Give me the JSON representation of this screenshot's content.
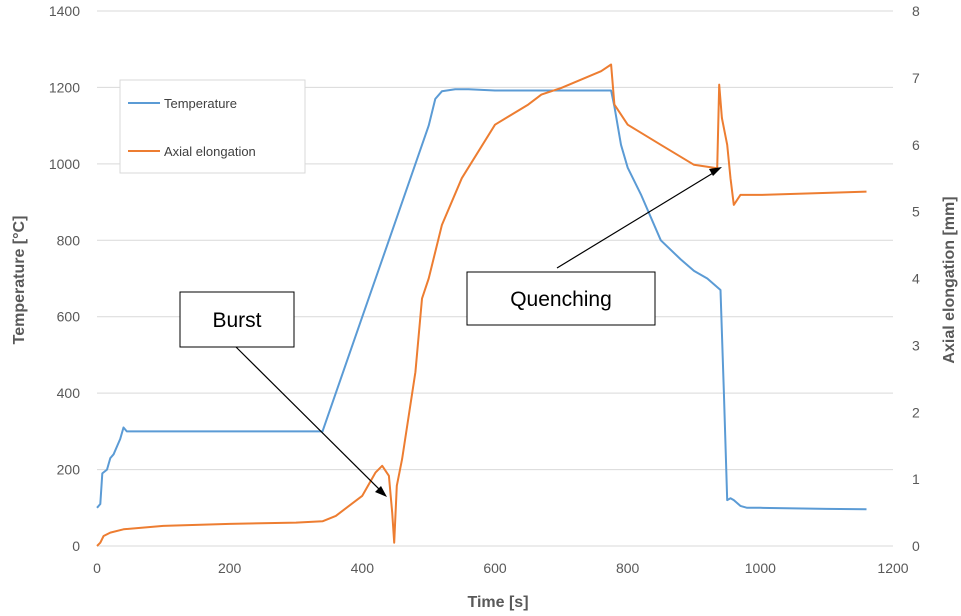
{
  "chart_data": {
    "type": "line",
    "xlabel": "Time [s]",
    "ylabel": "Temperature [°C]",
    "y2label": "Axial elongation [mm]",
    "xlim": [
      0,
      1200
    ],
    "ylim": [
      0,
      1400
    ],
    "y2lim": [
      0,
      8
    ],
    "xticks": [
      0,
      200,
      400,
      600,
      800,
      1000,
      1200
    ],
    "yticks": [
      0,
      200,
      400,
      600,
      800,
      1000,
      1200,
      1400
    ],
    "y2ticks": [
      0,
      1,
      2,
      3,
      4,
      5,
      6,
      7,
      8
    ],
    "grid": "horizontal",
    "legend_position": "top-left",
    "series": [
      {
        "name": "Temperature",
        "axis": "left",
        "color": "#5b9bd5",
        "x": [
          0,
          5,
          8,
          15,
          20,
          25,
          30,
          35,
          40,
          45,
          60,
          100,
          200,
          300,
          340,
          360,
          400,
          440,
          480,
          500,
          510,
          520,
          540,
          560,
          600,
          700,
          760,
          775,
          780,
          790,
          800,
          820,
          850,
          880,
          900,
          920,
          940,
          945,
          950,
          955,
          960,
          970,
          980,
          1000,
          1100,
          1160
        ],
        "y": [
          100,
          110,
          190,
          200,
          230,
          240,
          260,
          280,
          310,
          300,
          300,
          300,
          300,
          300,
          300,
          400,
          600,
          800,
          1000,
          1100,
          1170,
          1190,
          1195,
          1195,
          1192,
          1192,
          1192,
          1192,
          1150,
          1050,
          990,
          920,
          800,
          750,
          720,
          700,
          670,
          400,
          120,
          125,
          120,
          105,
          100,
          100,
          97,
          96
        ]
      },
      {
        "name": "Axial elongation",
        "axis": "right",
        "color": "#ed7d31",
        "x": [
          0,
          5,
          10,
          20,
          40,
          100,
          200,
          300,
          340,
          360,
          400,
          420,
          430,
          440,
          445,
          448,
          452,
          460,
          480,
          490,
          500,
          520,
          550,
          600,
          650,
          670,
          700,
          760,
          775,
          780,
          800,
          850,
          900,
          935,
          938,
          942,
          950,
          955,
          960,
          970,
          980,
          1000,
          1100,
          1160
        ],
        "y": [
          0,
          0.05,
          0.15,
          0.2,
          0.25,
          0.3,
          0.33,
          0.35,
          0.37,
          0.45,
          0.75,
          1.1,
          1.2,
          1.05,
          0.5,
          0.05,
          0.9,
          1.3,
          2.6,
          3.7,
          4.0,
          4.8,
          5.5,
          6.3,
          6.6,
          6.75,
          6.85,
          7.1,
          7.2,
          6.6,
          6.3,
          6.0,
          5.7,
          5.65,
          6.9,
          6.4,
          6.0,
          5.5,
          5.1,
          5.25,
          5.25,
          5.25,
          5.28,
          5.3
        ]
      }
    ],
    "annotations": [
      {
        "text": "Burst",
        "x": 440,
        "y2": 0.9
      },
      {
        "text": "Quenching",
        "x": 940,
        "y2": 5.65
      }
    ]
  }
}
